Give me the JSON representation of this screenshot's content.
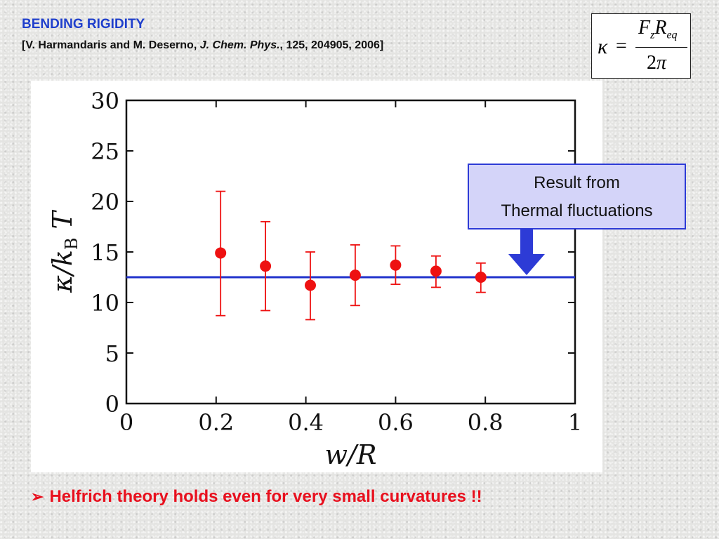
{
  "slide": {
    "title": "BENDING RIGIDITY",
    "reference": {
      "authors": "[V. Harmandaris and M. Deserno, ",
      "journal": "J. Chem. Phys.",
      "details": ", 125, 204905, 2006]"
    },
    "formula": {
      "lhs": "κ",
      "equals": "=",
      "numerator_F": "F",
      "numerator_F_sub": "z",
      "numerator_R": "R",
      "numerator_R_sub": "eq",
      "denominator_num": "2",
      "denominator_sym": "π"
    },
    "callout": {
      "line1": "Result from",
      "line2": "Thermal fluctuations",
      "fill": "#d4d4f9",
      "border": "#2d3bd6",
      "arrow_color": "#2d3bd6"
    },
    "bullet": {
      "marker": "➢",
      "text": "Helfrich theory holds even for very small curvatures !!"
    },
    "colors": {
      "title": "#1f3fcc",
      "bullet": "#e8101e"
    }
  },
  "chart_data": {
    "type": "scatter",
    "xlabel": "w/R",
    "ylabel": "κ/k_B T",
    "xlim": [
      0,
      1
    ],
    "ylim": [
      0,
      30
    ],
    "x_ticks": [
      0,
      0.2,
      0.4,
      0.6,
      0.8,
      1
    ],
    "x_tick_labels": [
      "0",
      "0.2",
      "0.4",
      "0.6",
      "0.8",
      "1"
    ],
    "y_ticks": [
      0,
      5,
      10,
      15,
      20,
      25,
      30
    ],
    "y_tick_labels": [
      "0",
      "5",
      "10",
      "15",
      "20",
      "25",
      "30"
    ],
    "grid": false,
    "series": [
      {
        "kind": "errorbar",
        "color": "#ee1111",
        "points": [
          {
            "x": 0.21,
            "y": 14.9,
            "ylow": 8.7,
            "yhigh": 21.0
          },
          {
            "x": 0.31,
            "y": 13.6,
            "ylow": 9.2,
            "yhigh": 18.0
          },
          {
            "x": 0.41,
            "y": 11.7,
            "ylow": 8.3,
            "yhigh": 15.0
          },
          {
            "x": 0.51,
            "y": 12.7,
            "ylow": 9.7,
            "yhigh": 15.7
          },
          {
            "x": 0.6,
            "y": 13.7,
            "ylow": 11.8,
            "yhigh": 15.6
          },
          {
            "x": 0.69,
            "y": 13.1,
            "ylow": 11.5,
            "yhigh": 14.6
          },
          {
            "x": 0.79,
            "y": 12.5,
            "ylow": 11.0,
            "yhigh": 13.9
          }
        ]
      },
      {
        "kind": "hline",
        "color": "#2233cc",
        "y": 12.5
      }
    ]
  }
}
